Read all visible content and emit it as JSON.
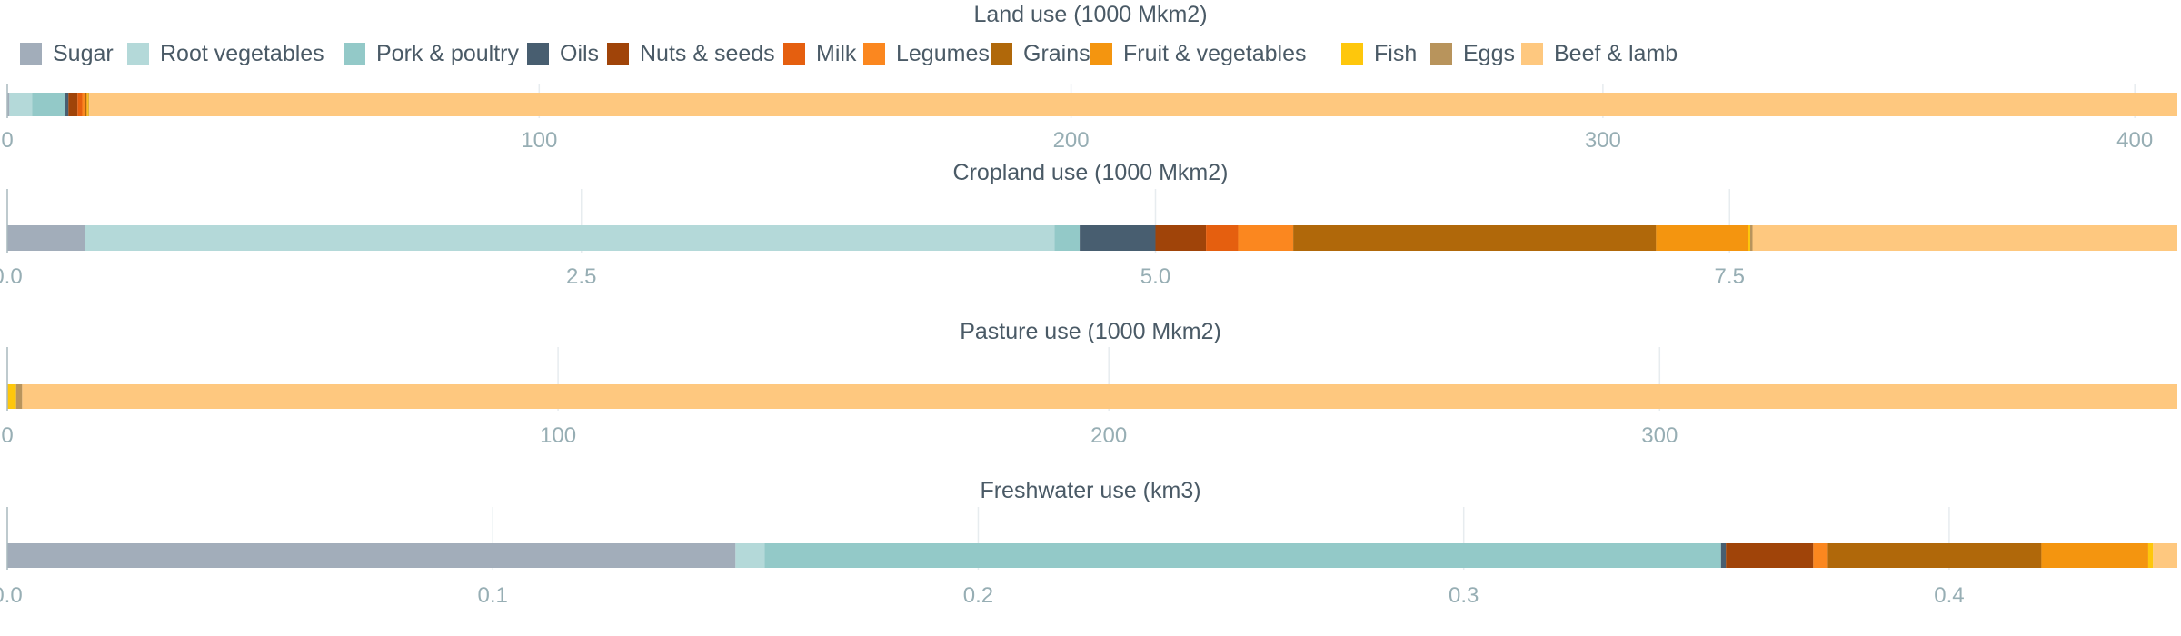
{
  "legend": {
    "position": "top",
    "items": [
      {
        "name": "Sugar",
        "color": "#a2adba"
      },
      {
        "name": "Root vegetables",
        "color": "#b4d9d9"
      },
      {
        "name": "Pork & poultry",
        "color": "#93c9c8"
      },
      {
        "name": "Oils",
        "color": "#485e70"
      },
      {
        "name": "Nuts & seeds",
        "color": "#a04409"
      },
      {
        "name": "Milk",
        "color": "#e55f0f"
      },
      {
        "name": "Legumes",
        "color": "#fb871f"
      },
      {
        "name": "Grains",
        "color": "#b0680a"
      },
      {
        "name": "Fruit & vegetables",
        "color": "#f4950f"
      },
      {
        "name": "Fish",
        "color": "#fec70c"
      },
      {
        "name": "Eggs",
        "color": "#b8945c"
      },
      {
        "name": "Beef & lamb",
        "color": "#fec87f"
      }
    ]
  },
  "chart_data": [
    {
      "type": "bar",
      "orientation": "horizontal",
      "stacked": true,
      "title": "Land use (1000 Mkm2)",
      "xlim": [
        0,
        408
      ],
      "ticks": [
        0,
        100,
        200,
        300,
        400
      ],
      "tick_labels": [
        "0",
        "100",
        "200",
        "300",
        "400"
      ],
      "grid": true,
      "segments": [
        {
          "series": "Sugar",
          "value": 0.4
        },
        {
          "series": "Root vegetables",
          "value": 4.3
        },
        {
          "series": "Pork & poultry",
          "value": 6.2
        },
        {
          "series": "Oils",
          "value": 0.6
        },
        {
          "series": "Nuts & seeds",
          "value": 1.7
        },
        {
          "series": "Milk",
          "value": 0.9
        },
        {
          "series": "Legumes",
          "value": 0.5
        },
        {
          "series": "Grains",
          "value": 0.3
        },
        {
          "series": "Fruit & vegetables",
          "value": 0.2
        },
        {
          "series": "Fish",
          "value": 0.2
        },
        {
          "series": "Eggs",
          "value": 0.1
        },
        {
          "series": "Beef & lamb",
          "value": 392.6
        }
      ]
    },
    {
      "type": "bar",
      "orientation": "horizontal",
      "stacked": true,
      "title": "Cropland use (1000 Mkm2)",
      "xlim": [
        0,
        9.45
      ],
      "ticks": [
        0,
        2.5,
        5.0,
        7.5
      ],
      "tick_labels": [
        "0.0",
        "2.5",
        "5.0",
        "7.5"
      ],
      "grid": true,
      "segments": [
        {
          "series": "Sugar",
          "value": 0.34
        },
        {
          "series": "Root vegetables",
          "value": 4.22
        },
        {
          "series": "Pork & poultry",
          "value": 0.11
        },
        {
          "series": "Oils",
          "value": 0.33
        },
        {
          "series": "Nuts & seeds",
          "value": 0.22
        },
        {
          "series": "Milk",
          "value": 0.14
        },
        {
          "series": "Legumes",
          "value": 0.24
        },
        {
          "series": "Grains",
          "value": 1.58
        },
        {
          "series": "Fruit & vegetables",
          "value": 0.4
        },
        {
          "series": "Fish",
          "value": 0.01
        },
        {
          "series": "Eggs",
          "value": 0.01
        },
        {
          "series": "Beef & lamb",
          "value": 1.85
        }
      ]
    },
    {
      "type": "bar",
      "orientation": "horizontal",
      "stacked": true,
      "title": "Pasture use (1000 Mkm2)",
      "xlim": [
        0,
        394
      ],
      "ticks": [
        0,
        100,
        200,
        300
      ],
      "tick_labels": [
        "0",
        "100",
        "200",
        "300"
      ],
      "grid": true,
      "segments": [
        {
          "series": "Sugar",
          "value": 0
        },
        {
          "series": "Root vegetables",
          "value": 0
        },
        {
          "series": "Pork & poultry",
          "value": 0
        },
        {
          "series": "Oils",
          "value": 0
        },
        {
          "series": "Nuts & seeds",
          "value": 0
        },
        {
          "series": "Milk",
          "value": 0
        },
        {
          "series": "Legumes",
          "value": 0
        },
        {
          "series": "Grains",
          "value": 0
        },
        {
          "series": "Fruit & vegetables",
          "value": 0
        },
        {
          "series": "Fish",
          "value": 1.6
        },
        {
          "series": "Eggs",
          "value": 1.1
        },
        {
          "series": "Beef & lamb",
          "value": 391.3
        }
      ]
    },
    {
      "type": "bar",
      "orientation": "horizontal",
      "stacked": true,
      "title": "Freshwater use (km3)",
      "xlim": [
        0,
        0.447
      ],
      "ticks": [
        0,
        0.1,
        0.2,
        0.3,
        0.4
      ],
      "tick_labels": [
        "0.0",
        "0.1",
        "0.2",
        "0.3",
        "0.4"
      ],
      "grid": true,
      "segments": [
        {
          "series": "Sugar",
          "value": 0.15
        },
        {
          "series": "Root vegetables",
          "value": 0.006
        },
        {
          "series": "Pork & poultry",
          "value": 0.197
        },
        {
          "series": "Oils",
          "value": 0.001
        },
        {
          "series": "Nuts & seeds",
          "value": 0.018
        },
        {
          "series": "Milk",
          "value": 0.0
        },
        {
          "series": "Legumes",
          "value": 0.003
        },
        {
          "series": "Grains",
          "value": 0.044
        },
        {
          "series": "Fruit & vegetables",
          "value": 0.022
        },
        {
          "series": "Fish",
          "value": 0.001
        },
        {
          "series": "Eggs",
          "value": 0.0
        },
        {
          "series": "Beef & lamb",
          "value": 0.005
        }
      ]
    }
  ]
}
